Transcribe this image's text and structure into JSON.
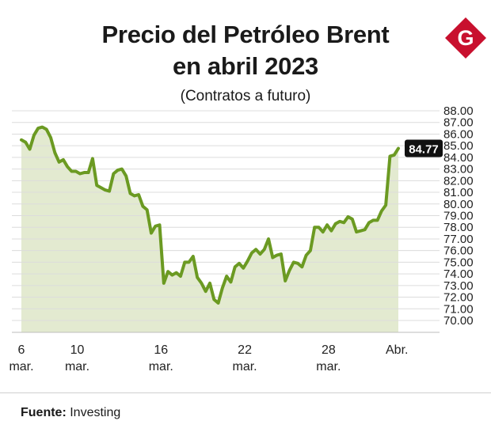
{
  "header": {
    "title_line1": "Precio del Petróleo Brent",
    "title_line2": "en abril 2023",
    "subtitle": "(Contratos a futuro)"
  },
  "logo": {
    "letter": "G",
    "color": "#c8102e"
  },
  "footer": {
    "source_label": "Fuente:",
    "source_value": "Investing"
  },
  "colors": {
    "line": "#6b9a22",
    "area": "#e3ead0",
    "grid": "#dcdcdc"
  },
  "chart_data": {
    "type": "area",
    "title": "Precio del Petróleo Brent en abril 2023",
    "subtitle": "(Contratos a futuro)",
    "xlabel": "",
    "ylabel": "",
    "ylim": [
      70.0,
      88.0
    ],
    "y_ticks": [
      "70.00",
      "71.00",
      "72.00",
      "73.00",
      "74.00",
      "75.00",
      "76.00",
      "77.00",
      "78.00",
      "79.00",
      "80.00",
      "81.00",
      "82.00",
      "83.00",
      "84.00",
      "85.00",
      "86.00",
      "87.00",
      "88.00"
    ],
    "x_ticks": [
      {
        "x": 0,
        "label": [
          "6",
          "mar."
        ]
      },
      {
        "x": 4,
        "label": [
          "10",
          "mar."
        ]
      },
      {
        "x": 10,
        "label": [
          "16",
          "mar."
        ]
      },
      {
        "x": 16,
        "label": [
          "22",
          "mar."
        ]
      },
      {
        "x": 22,
        "label": [
          "28",
          "mar."
        ]
      },
      {
        "x": 26.9,
        "label": [
          "Abr.",
          ""
        ]
      }
    ],
    "last_value_label": "84.77",
    "grid": true,
    "legend": "none",
    "series": [
      {
        "x": [
          0,
          0.3,
          0.6,
          0.9,
          1.2,
          1.5,
          1.8,
          2.1,
          2.4,
          2.7,
          3.0,
          3.3,
          3.6,
          3.9,
          4.2,
          4.5,
          4.8,
          5.1,
          5.4,
          5.7,
          6.0,
          6.3,
          6.6,
          6.9,
          7.2,
          7.5,
          7.8,
          8.1,
          8.4,
          8.7,
          9.0,
          9.3,
          9.6,
          9.9,
          10.2,
          10.5,
          10.8,
          11.1,
          11.4,
          11.7,
          12.0,
          12.3,
          12.6,
          12.9,
          13.2,
          13.5,
          13.8,
          14.1,
          14.4,
          14.7,
          15.0,
          15.3,
          15.6,
          15.9,
          16.2,
          16.5,
          16.8,
          17.1,
          17.4,
          17.7,
          18.0,
          18.3,
          18.6,
          18.9,
          19.2,
          19.5,
          19.8,
          20.1,
          20.4,
          20.7,
          21.0,
          21.3,
          21.6,
          21.9,
          22.2,
          22.5,
          22.8,
          23.1,
          23.4,
          23.7,
          24.0,
          24.3,
          24.6,
          24.9,
          25.2,
          25.5,
          25.8,
          26.1,
          26.4,
          26.7,
          27.0
        ],
        "values": [
          85.5,
          85.3,
          84.7,
          85.9,
          86.5,
          86.6,
          86.4,
          85.7,
          84.4,
          83.6,
          83.8,
          83.2,
          82.8,
          82.8,
          82.6,
          82.7,
          82.7,
          83.9,
          81.6,
          81.4,
          81.2,
          81.1,
          82.6,
          82.9,
          83.0,
          82.4,
          80.9,
          80.7,
          80.8,
          79.8,
          79.5,
          77.5,
          78.1,
          78.2,
          73.2,
          74.2,
          73.9,
          74.1,
          73.8,
          75.0,
          75.0,
          75.5,
          73.7,
          73.2,
          72.5,
          73.2,
          71.8,
          71.5,
          72.8,
          73.8,
          73.3,
          74.6,
          74.9,
          74.5,
          75.1,
          75.8,
          76.1,
          75.7,
          76.1,
          77.0,
          75.4,
          75.6,
          75.7,
          73.4,
          74.3,
          75.0,
          74.9,
          74.6,
          75.6,
          76.0,
          78.0,
          78.0,
          77.6,
          78.2,
          77.7,
          78.3,
          78.5,
          78.4,
          78.9,
          78.7,
          77.6,
          77.7,
          77.8,
          78.4,
          78.6,
          78.6,
          79.4,
          79.9,
          84.1,
          84.2,
          84.77
        ]
      }
    ]
  }
}
